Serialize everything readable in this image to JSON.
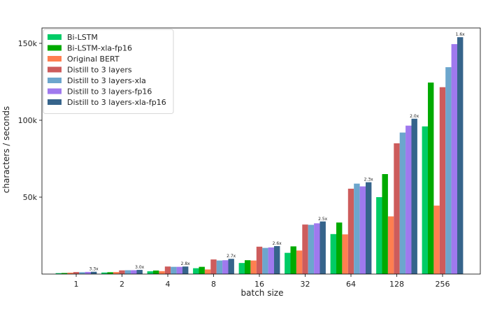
{
  "chart_data": {
    "type": "bar",
    "xlabel": "batch size",
    "ylabel": "characters / seconds",
    "categories": [
      "1",
      "2",
      "4",
      "8",
      "16",
      "32",
      "64",
      "128",
      "256"
    ],
    "ylim": [
      0,
      160000
    ],
    "yticks": [
      50000,
      100000,
      150000
    ],
    "ytick_labels": [
      "50k",
      "100k",
      "150k"
    ],
    "grid": false,
    "legend_position": "top-left",
    "series": [
      {
        "name": "Bi-LSTM",
        "color": "#00cc66",
        "values": [
          600,
          1000,
          1800,
          3800,
          7200,
          13800,
          26000,
          50000,
          96000
        ]
      },
      {
        "name": "Bi-LSTM-xla-fp16",
        "color": "#00aa00",
        "values": [
          700,
          1200,
          2300,
          4700,
          9000,
          18000,
          33500,
          65000,
          124500
        ]
      },
      {
        "name": "Original BERT",
        "color": "#ff7f50",
        "values": [
          900,
          1300,
          1900,
          3000,
          8800,
          15300,
          25800,
          37500,
          44500
        ]
      },
      {
        "name": "Distill to 3 layers",
        "color": "#cd5c5c",
        "values": [
          1300,
          2400,
          4900,
          9500,
          17800,
          32200,
          55500,
          85000,
          121500
        ]
      },
      {
        "name": "Distill to 3 layers-xla",
        "color": "#6ca6cd",
        "values": [
          1200,
          2500,
          4700,
          8800,
          17000,
          32000,
          58800,
          92000,
          134500
        ]
      },
      {
        "name": "Distill to 3 layers-fp16",
        "color": "#9f79ee",
        "values": [
          1400,
          2500,
          4700,
          9000,
          17300,
          33000,
          57000,
          96500,
          149500
        ]
      },
      {
        "name": "Distill to 3 layers-xla-fp16",
        "color": "#36648b",
        "values": [
          1500,
          2700,
          4900,
          9900,
          18200,
          34200,
          59700,
          101000,
          154000
        ]
      }
    ],
    "annotations": [
      "3.3x",
      "3.0x",
      "2.8x",
      "2.7x",
      "2.6x",
      "2.5x",
      "2.3x",
      "2.0x",
      "1.6x"
    ]
  }
}
